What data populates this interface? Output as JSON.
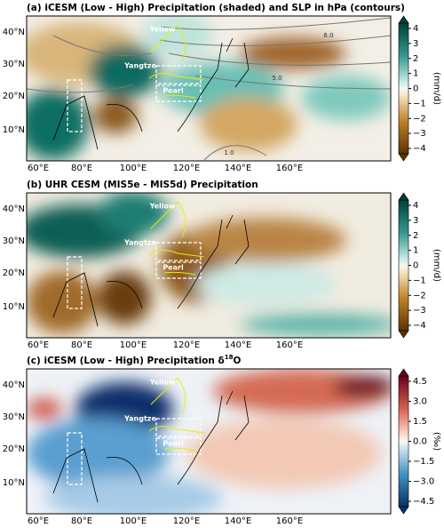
{
  "panels": [
    {
      "title": "(a) iCESM (Low - High) Precipitation (shaded) and SLP in hPa (contours)",
      "lon_labels": [
        "60°E",
        "80°E",
        "100°E",
        "120°E",
        "140°E",
        "160°E"
      ],
      "lat_labels": [
        "40°N",
        "30°N",
        "20°N",
        "10°N"
      ],
      "colorbar_ticks": [
        "4",
        "3",
        "2",
        "1",
        "0",
        "−1",
        "−2",
        "−3",
        "−4"
      ],
      "colorbar_label": "(mm/d)",
      "river_labels": [
        "Yellow",
        "Yangtze",
        "Pearl"
      ],
      "contour_labels": [
        "6.0",
        "5.0",
        "1.0"
      ]
    },
    {
      "title": "(b) UHR CESM (MIS5e - MIS5d) Precipitation",
      "lon_labels": [
        "60°E",
        "80°E",
        "100°E",
        "120°E",
        "140°E",
        "160°E"
      ],
      "lat_labels": [
        "40°N",
        "30°N",
        "20°N",
        "10°N"
      ],
      "colorbar_ticks": [
        "4",
        "3",
        "2",
        "1",
        "0",
        "−1",
        "−2",
        "−3",
        "−4"
      ],
      "colorbar_label": "(mm/d)",
      "river_labels": [
        "Yellow",
        "Yangtze",
        "Pearl"
      ]
    },
    {
      "title": "(c) iCESM (Low - High) Precipitation δ",
      "title_sup": "18",
      "title_end": "O",
      "lon_labels": [
        "60°E",
        "80°E",
        "100°E",
        "120°E",
        "140°E",
        "160°E"
      ],
      "lat_labels": [
        "40°N",
        "30°N",
        "20°N",
        "10°N"
      ],
      "colorbar_ticks": [
        "4.5",
        "3.0",
        "1.5",
        "0.0",
        "−1.5",
        "−3.0",
        "−4.5"
      ],
      "colorbar_label": "(‰)",
      "river_labels": [
        "Yellow",
        "Yangtze",
        "Pearl"
      ]
    }
  ]
}
